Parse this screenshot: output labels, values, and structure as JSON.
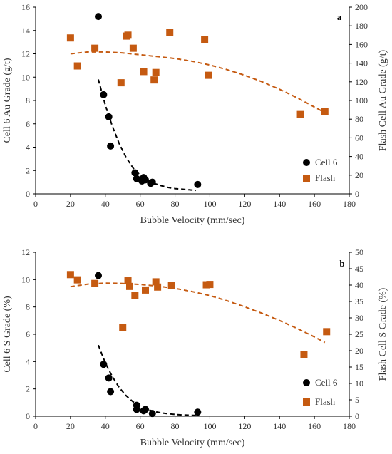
{
  "chart_data": [
    {
      "panel_label": "a",
      "type": "scatter",
      "xlabel": "Bubble Velocity (mm/sec)",
      "ylabel": "Cell 6 Au Grade (g/t)",
      "y2label": "Flash Cell Au Grade (g/t)",
      "xlim": [
        0,
        180
      ],
      "ylim": [
        0,
        16
      ],
      "y2lim": [
        0,
        200
      ],
      "xticks": [
        0,
        20,
        40,
        60,
        80,
        100,
        120,
        140,
        160,
        180
      ],
      "yticks": [
        0,
        2,
        4,
        6,
        8,
        10,
        12,
        14,
        16
      ],
      "y2ticks": [
        0,
        20,
        40,
        60,
        80,
        100,
        120,
        140,
        160,
        180,
        200
      ],
      "legend_position": "bottom-right",
      "series": [
        {
          "name": "Cell 6",
          "axis": "left",
          "marker": "circle",
          "color": "#000000",
          "x": [
            36,
            39,
            42,
            43,
            57,
            58,
            61,
            62,
            63,
            66,
            67,
            93
          ],
          "y": [
            15.2,
            8.5,
            6.6,
            4.1,
            1.8,
            1.3,
            1.1,
            1.4,
            1.2,
            0.9,
            1.0,
            0.8
          ]
        },
        {
          "name": "Flash",
          "axis": "right",
          "marker": "square",
          "color": "#c55a11",
          "x": [
            20,
            24,
            34,
            49,
            52,
            53,
            56,
            62,
            68,
            69,
            77,
            97,
            99,
            152,
            166
          ],
          "y": [
            167,
            137,
            156,
            119,
            169,
            170,
            156,
            131,
            122,
            130,
            173,
            165,
            127,
            85,
            88
          ]
        }
      ],
      "trendlines": [
        {
          "series": "Cell 6",
          "axis": "left",
          "color": "#000000",
          "x": [
            36,
            40,
            44,
            48,
            52,
            56,
            60,
            64,
            68,
            72,
            76,
            80,
            84,
            88,
            92
          ],
          "y": [
            9.8,
            7.6,
            5.8,
            4.3,
            3.1,
            2.2,
            1.6,
            1.2,
            0.9,
            0.7,
            0.55,
            0.45,
            0.4,
            0.35,
            0.3
          ]
        },
        {
          "series": "Flash",
          "axis": "right",
          "color": "#c55a11",
          "x": [
            20,
            30,
            40,
            50,
            60,
            70,
            80,
            90,
            100,
            110,
            120,
            130,
            140,
            150,
            160,
            166
          ],
          "y": [
            150,
            152,
            152,
            151,
            149,
            147,
            145,
            142,
            138,
            133,
            127,
            120,
            112,
            103,
            93,
            87
          ]
        }
      ]
    },
    {
      "panel_label": "b",
      "type": "scatter",
      "xlabel": "Bubble Velocity (mm/sec)",
      "ylabel": "Cell 6 S Grade (%)",
      "y2label": "Flash Cell S Grade (%)",
      "xlim": [
        0,
        180
      ],
      "ylim": [
        0,
        12
      ],
      "y2lim": [
        0,
        50
      ],
      "xticks": [
        0,
        20,
        40,
        60,
        80,
        100,
        120,
        140,
        160,
        180
      ],
      "yticks": [
        0,
        2,
        4,
        6,
        8,
        10,
        12
      ],
      "y2ticks": [
        0,
        5,
        10,
        15,
        20,
        25,
        30,
        35,
        40,
        45,
        50
      ],
      "legend_position": "bottom-right",
      "series": [
        {
          "name": "Cell 6",
          "axis": "left",
          "marker": "circle",
          "color": "#000000",
          "x": [
            36,
            39,
            42,
            43,
            58,
            58,
            62,
            63,
            67,
            93
          ],
          "y": [
            10.3,
            3.8,
            2.8,
            1.8,
            0.8,
            0.5,
            0.4,
            0.5,
            0.2,
            0.3
          ]
        },
        {
          "name": "Flash",
          "axis": "right",
          "marker": "square",
          "color": "#c55a11",
          "x": [
            20,
            24,
            34,
            50,
            53,
            54,
            57,
            63,
            69,
            70,
            78,
            98,
            100,
            154,
            167
          ],
          "y": [
            43.2,
            41.6,
            40.5,
            27.0,
            41.3,
            39.6,
            36.9,
            38.5,
            41.0,
            39.4,
            40.0,
            40.1,
            40.2,
            18.8,
            25.8
          ]
        }
      ],
      "trendlines": [
        {
          "series": "Cell 6",
          "axis": "left",
          "color": "#000000",
          "x": [
            36,
            40,
            44,
            48,
            52,
            56,
            60,
            64,
            68,
            72,
            76,
            80,
            84,
            88,
            92
          ],
          "y": [
            5.2,
            3.9,
            2.9,
            2.1,
            1.5,
            1.05,
            0.75,
            0.5,
            0.35,
            0.25,
            0.18,
            0.13,
            0.1,
            0.08,
            0.06
          ]
        },
        {
          "series": "Flash",
          "axis": "right",
          "color": "#c55a11",
          "x": [
            20,
            30,
            40,
            50,
            60,
            70,
            80,
            90,
            100,
            110,
            120,
            130,
            140,
            150,
            160,
            166
          ],
          "y": [
            39.5,
            40.3,
            40.6,
            40.5,
            40.2,
            39.7,
            39.0,
            38.0,
            36.8,
            35.2,
            33.4,
            31.4,
            29.2,
            26.8,
            24.2,
            22.5
          ]
        }
      ]
    }
  ]
}
